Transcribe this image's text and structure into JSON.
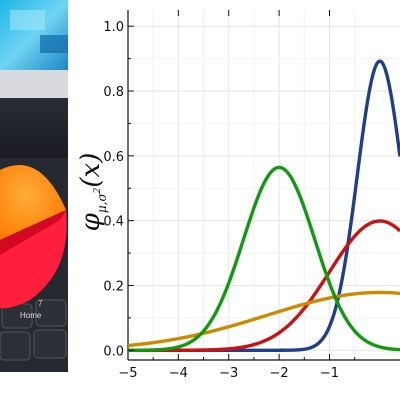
{
  "chart_data": {
    "type": "line",
    "title": "",
    "xlabel": "",
    "ylabel": "φ",
    "ylabel_sub": "μ,σ",
    "ylabel_sup": "2",
    "ylabel_arg": "(x)",
    "xlim": [
      -5,
      0.4
    ],
    "ylim": [
      -0.03,
      1.05
    ],
    "x_ticks": [
      "−5",
      "−4",
      "−3",
      "−2",
      "−1"
    ],
    "x_tick_values": [
      -5,
      -4,
      -3,
      -2,
      -1
    ],
    "y_ticks": [
      "0.0",
      "0.2",
      "0.4",
      "0.6",
      "0.8",
      "1.0"
    ],
    "y_tick_values": [
      0.0,
      0.2,
      0.4,
      0.6,
      0.8,
      1.0
    ],
    "grid": true,
    "series": [
      {
        "mu": 0,
        "sigma2": 0.2,
        "color": "#1f3f8a"
      },
      {
        "mu": 0,
        "sigma2": 1.0,
        "color": "#cc1111"
      },
      {
        "mu": 0,
        "sigma2": 5.0,
        "color": "#cc8a00"
      },
      {
        "mu": -2,
        "sigma2": 0.5,
        "color": "#119911"
      }
    ]
  },
  "photo": {
    "key_label": "Home",
    "key_number": "7"
  }
}
